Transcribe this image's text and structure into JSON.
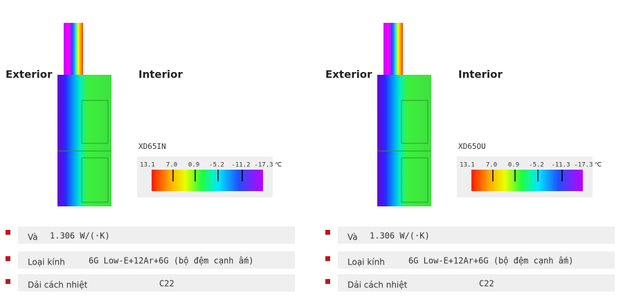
{
  "panels": [
    {
      "exterior": "Exterior",
      "interior": "Interior",
      "model": "XD65IN",
      "scale_labels": [
        "13.1",
        "7.0",
        "0.9",
        "-5.2",
        "-11.2",
        "-17.3"
      ],
      "unit": "℃",
      "specs": [
        {
          "label": "Và",
          "value": "1.306 W/(·K)"
        },
        {
          "label": "Loại kính",
          "value": "6G Low-E+12Ar+6G (bộ đệm cạnh ấm)"
        },
        {
          "label": "Dải cách nhiệt",
          "value": "C22"
        }
      ]
    },
    {
      "exterior": "Exterior",
      "interior": "Interior",
      "model": "XD65OU",
      "scale_labels": [
        "13.1",
        "7.0",
        "0.9",
        "-5.2",
        "-11.3",
        "-17.3"
      ],
      "unit": "℃",
      "specs": [
        {
          "label": "Và",
          "value": "1.306 W/(·K)"
        },
        {
          "label": "Loại kính",
          "value": "6G Low-E+12Ar+6G (bộ đệm cạnh ấm)"
        },
        {
          "label": "Dải cách nhiệt",
          "value": "C22"
        }
      ]
    }
  ]
}
